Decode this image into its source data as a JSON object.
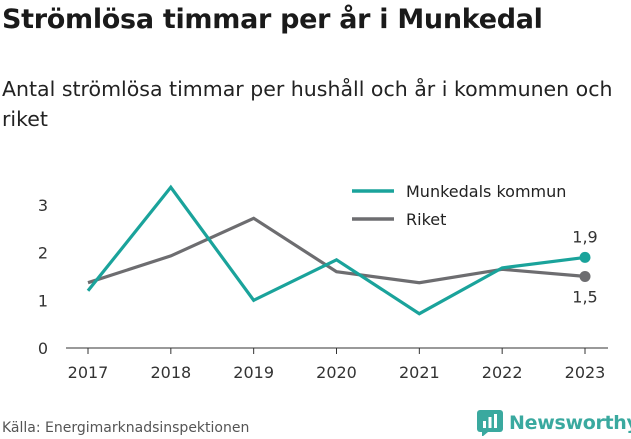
{
  "header": {
    "title": "Strömlösa timmar per år i Munkedal",
    "subtitle": "Antal strömlösa timmar per hushåll och år i kommunen och riket"
  },
  "footer": {
    "source": "Källa: Energimarknadsinspektionen",
    "brand": "Newsworthy",
    "brand_icon": "newsworthy-logo-icon",
    "brand_color": "#3aa99f"
  },
  "chart_data": {
    "type": "line",
    "x": [
      "2017",
      "2018",
      "2019",
      "2020",
      "2021",
      "2022",
      "2023"
    ],
    "ylim": [
      0,
      3.4
    ],
    "yticks": [
      0,
      1,
      2,
      3
    ],
    "grid": false,
    "legend_position": "top-right",
    "series": [
      {
        "name": "Munkedals kommun",
        "color": "#1aa39b",
        "values": [
          1.2,
          3.37,
          1.0,
          1.85,
          0.72,
          1.68,
          1.9
        ],
        "end_label": "1,9"
      },
      {
        "name": "Riket",
        "color": "#6d6d70",
        "values": [
          1.37,
          1.93,
          2.72,
          1.6,
          1.37,
          1.65,
          1.5
        ],
        "end_label": "1,5"
      }
    ]
  }
}
